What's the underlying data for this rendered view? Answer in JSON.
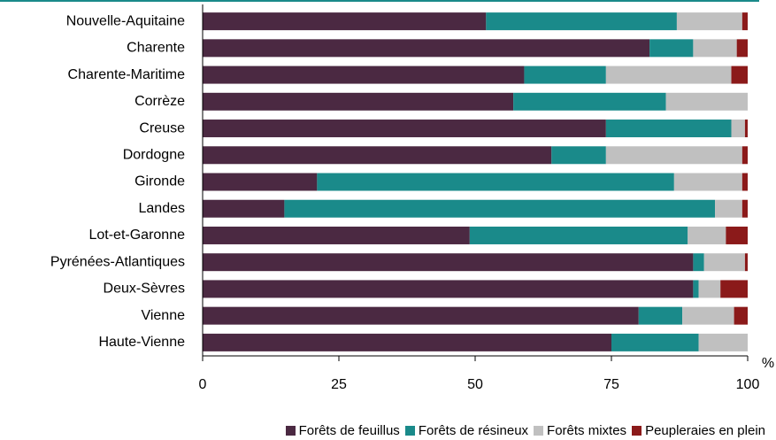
{
  "chart_data": {
    "type": "stacked_barh",
    "categories": [
      "Nouvelle-Aquitaine",
      "Charente",
      "Charente-Maritime",
      "Corrèze",
      "Creuse",
      "Dordogne",
      "Gironde",
      "Landes",
      "Lot-et-Garonne",
      "Pyrénées-Atlantiques",
      "Deux-Sèvres",
      "Vienne",
      "Haute-Vienne"
    ],
    "series": [
      {
        "name": "Forêts de feuillus",
        "color": "#4b2942",
        "values": [
          52,
          82,
          59,
          57,
          74,
          64,
          21,
          15,
          49,
          90,
          90,
          80,
          75
        ]
      },
      {
        "name": "Forêts de résineux",
        "color": "#1a8a8a",
        "values": [
          35,
          8,
          15,
          28,
          23,
          10,
          65.5,
          79,
          40,
          2,
          1,
          8,
          16
        ]
      },
      {
        "name": "Forêts mixtes",
        "color": "#c0c0c0",
        "values": [
          12,
          8,
          23,
          15,
          2.5,
          25,
          12.5,
          5,
          7,
          7.5,
          4,
          9.5,
          9
        ]
      },
      {
        "name": "Peupleraies en plein",
        "color": "#8b1a1a",
        "values": [
          1,
          2,
          3,
          0,
          0.5,
          1,
          1,
          1,
          4,
          0.5,
          5,
          2.5,
          0
        ]
      }
    ],
    "xlim": [
      0,
      100
    ],
    "xticks": [
      0,
      25,
      50,
      75,
      100
    ],
    "xlabel": "%"
  }
}
